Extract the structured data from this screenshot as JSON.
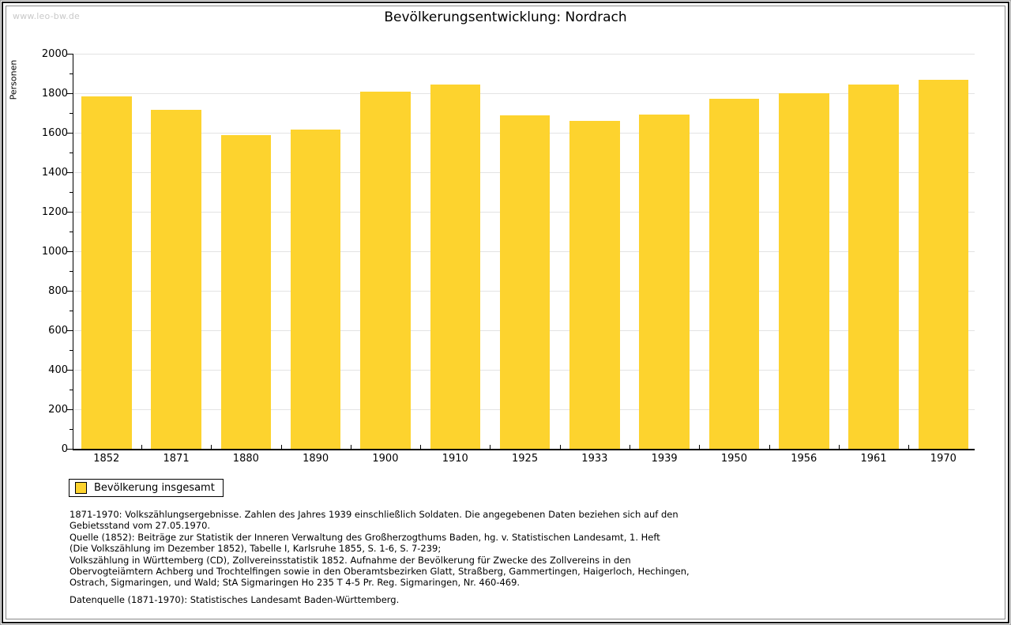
{
  "watermark": "www.leo-bw.de",
  "title": "Bevölkerungsentwicklung: Nordrach",
  "chart_data": {
    "type": "bar",
    "title": "Bevölkerungsentwicklung: Nordrach",
    "xlabel": "",
    "ylabel": "Personen",
    "ylim": [
      0,
      2000
    ],
    "y_major_tick_step": 200,
    "y_minor_tick_step": 100,
    "grid": true,
    "legend_position": "bottom-left",
    "categories": [
      "1852",
      "1871",
      "1880",
      "1890",
      "1900",
      "1910",
      "1925",
      "1933",
      "1939",
      "1950",
      "1956",
      "1961",
      "1970"
    ],
    "series": [
      {
        "name": "Bevölkerung insgesamt",
        "values": [
          1784,
          1718,
          1590,
          1616,
          1808,
          1844,
          1690,
          1660,
          1692,
          1773,
          1799,
          1844,
          1868
        ]
      }
    ],
    "bar_color": "#FDD32E",
    "grid_color": "#E3E3E3",
    "axis_color": "#000000"
  },
  "legend": {
    "label": "Bevölkerung insgesamt"
  },
  "footnotes": [
    "1871-1970: Volkszählungsergebnisse. Zahlen des Jahres 1939 einschließlich Soldaten. Die angegebenen Daten beziehen sich auf den",
    "Gebietsstand vom 27.05.1970.",
    "Quelle (1852): Beiträge zur Statistik der Inneren Verwaltung des Großherzogthums Baden, hg. v. Statistischen Landesamt, 1. Heft",
    "(Die Volkszählung im Dezember 1852), Tabelle I, Karlsruhe 1855, S. 1-6, S. 7-239;",
    "Volkszählung in Württemberg (CD), Zollvereinsstatistik 1852. Aufnahme der Bevölkerung für Zwecke des Zollvereins in den",
    "Obervogteiämtern Achberg und Trochtelfingen sowie in den Oberamtsbezirken Glatt, Straßberg, Gammertingen, Haigerloch, Hechingen,",
    "Ostrach, Sigmaringen, und Wald; StA Sigmaringen Ho 235 T 4-5 Pr. Reg. Sigmaringen, Nr. 460-469."
  ],
  "datasource": "Datenquelle (1871-1970): Statistisches Landesamt Baden-Württemberg."
}
